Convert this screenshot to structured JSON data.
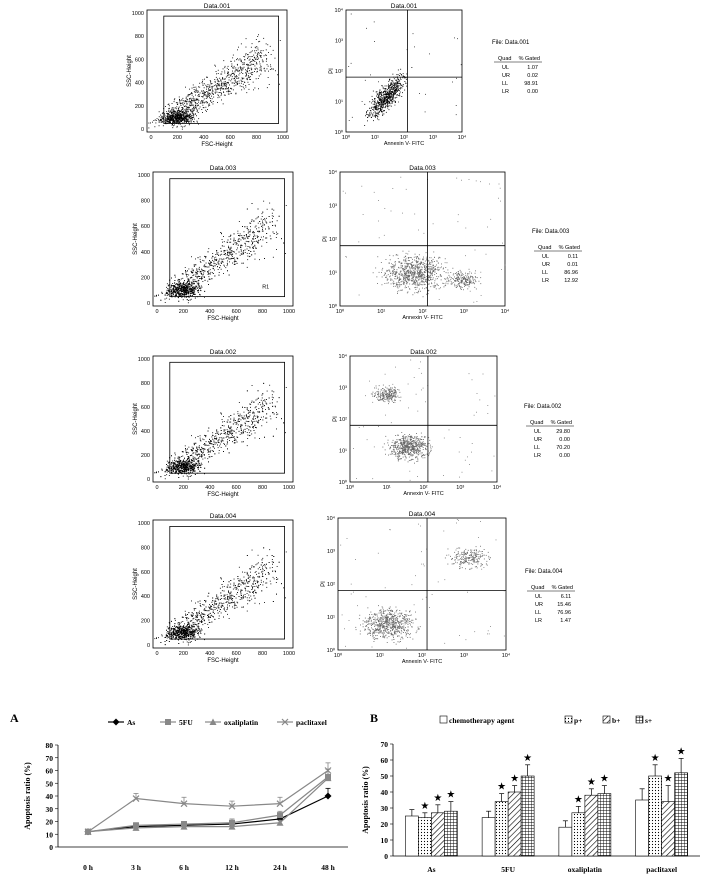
{
  "flow_panels": [
    {
      "title": "Data.001",
      "scatter_xlabel": "FSC-Height",
      "scatter_ylabel": "SSC-Height",
      "pi_xlabel": "Annexin V- FITC",
      "pi_ylabel": "PI",
      "gate_label": "",
      "table": {
        "file": "File: Data.001",
        "header": [
          "Quad",
          "% Gated"
        ],
        "rows": [
          [
            "UL",
            "1.07"
          ],
          [
            "UR",
            "0.02"
          ],
          [
            "LL",
            "98.91"
          ],
          [
            "LR",
            "0.00"
          ]
        ]
      }
    },
    {
      "title": "Data.003",
      "scatter_xlabel": "FSC-Height",
      "scatter_ylabel": "SSC-Height",
      "pi_xlabel": "Annexin V- FITC",
      "pi_ylabel": "PI",
      "gate_label": "R1",
      "table": {
        "file": "File: Data.003",
        "header": [
          "Quad",
          "% Gated"
        ],
        "rows": [
          [
            "UL",
            "0.11"
          ],
          [
            "UR",
            "0.01"
          ],
          [
            "LL",
            "86.96"
          ],
          [
            "LR",
            "12.92"
          ]
        ]
      }
    },
    {
      "title": "Data.002",
      "scatter_xlabel": "FSC-Height",
      "scatter_ylabel": "SSC-Height",
      "pi_xlabel": "Annexin V- FITC",
      "pi_ylabel": "PI",
      "gate_label": "",
      "table": {
        "file": "File: Data.002",
        "header": [
          "Quad",
          "% Gated"
        ],
        "rows": [
          [
            "UL",
            "29.80"
          ],
          [
            "UR",
            "0.00"
          ],
          [
            "LL",
            "70.20"
          ],
          [
            "LR",
            "0.00"
          ]
        ]
      }
    },
    {
      "title": "Data.004",
      "scatter_xlabel": "FSC-Height",
      "scatter_ylabel": "SSC-Height",
      "pi_xlabel": "Annexin V- FITC",
      "pi_ylabel": "PI",
      "gate_label": "",
      "table": {
        "file": "File: Data.004",
        "header": [
          "Quad",
          "% Gated"
        ],
        "rows": [
          [
            "UL",
            "6.11"
          ],
          [
            "UR",
            "15.46"
          ],
          [
            "LL",
            "76.96"
          ],
          [
            "LR",
            "1.47"
          ]
        ]
      }
    }
  ],
  "chart_data": [
    {
      "type": "line",
      "panel_label": "A",
      "categories": [
        "0 h",
        "3 h",
        "6 h",
        "12 h",
        "24 h",
        "48 h"
      ],
      "ylabel": "Apoptosis ratio (%)",
      "ylim": [
        0,
        80
      ],
      "yticks": [
        0,
        10,
        20,
        30,
        40,
        50,
        60,
        70,
        80
      ],
      "legend_placement": "top",
      "series": [
        {
          "name": "As",
          "values": [
            12,
            16,
            17,
            18,
            22,
            40
          ],
          "errors": [
            1,
            2,
            2,
            2,
            3,
            6
          ],
          "marker": "diamond",
          "color": "#000000"
        },
        {
          "name": "5FU",
          "values": [
            12,
            17,
            18,
            19,
            25,
            55
          ],
          "errors": [
            1,
            2,
            2,
            3,
            3,
            6
          ],
          "marker": "square",
          "color": "#888888"
        },
        {
          "name": "oxaliplatin",
          "values": [
            12,
            15,
            16,
            16,
            19,
            54
          ],
          "errors": [
            1,
            2,
            2,
            2,
            2,
            7
          ],
          "marker": "triangle",
          "color": "#888888"
        },
        {
          "name": "paclitaxel",
          "values": [
            12,
            38,
            34,
            32,
            34,
            60
          ],
          "errors": [
            1,
            4,
            5,
            4,
            5,
            6
          ],
          "marker": "x",
          "color": "#888888"
        }
      ]
    },
    {
      "type": "bar",
      "panel_label": "B",
      "categories": [
        "As",
        "5FU",
        "oxaliplatin",
        "paclitaxel"
      ],
      "ylabel": "Apoptosis ratio (%)",
      "ylim": [
        0,
        70
      ],
      "yticks": [
        0,
        10,
        20,
        30,
        40,
        50,
        60,
        70
      ],
      "legend_placement": "top",
      "significance_marker": "★",
      "series": [
        {
          "name": "chemotherapy agent",
          "pattern": "white",
          "values": [
            25,
            24,
            18,
            35
          ],
          "errors": [
            4,
            4,
            4,
            7
          ],
          "star": [
            false,
            false,
            false,
            false
          ]
        },
        {
          "name": "p+",
          "pattern": "dots",
          "values": [
            24,
            34,
            27,
            50
          ],
          "errors": [
            3,
            5,
            4,
            7
          ],
          "star": [
            true,
            true,
            true,
            true
          ]
        },
        {
          "name": "b+",
          "pattern": "hatch",
          "values": [
            27,
            40,
            38,
            34
          ],
          "errors": [
            5,
            4,
            4,
            10
          ],
          "star": [
            true,
            true,
            true,
            true
          ]
        },
        {
          "name": "s+",
          "pattern": "grid",
          "values": [
            28,
            50,
            39,
            52
          ],
          "errors": [
            6,
            7,
            5,
            9
          ],
          "star": [
            true,
            true,
            true,
            true
          ]
        }
      ]
    }
  ]
}
